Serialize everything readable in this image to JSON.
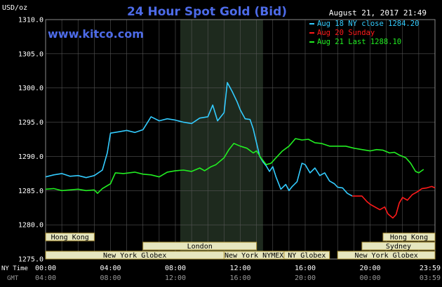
{
  "chart_data": {
    "type": "line",
    "title": "24 Hour Spot Gold (Bid)",
    "subtitle": "www.kitco.com",
    "timestamp": "August 21, 2017 21:49",
    "ylabel": "USD/oz",
    "ylim": [
      1275.0,
      1310.0
    ],
    "yticks": [
      "1275.0",
      "1280.0",
      "1285.0",
      "1290.0",
      "1295.0",
      "1300.0",
      "1305.0",
      "1310.0"
    ],
    "xlim": [
      0,
      24
    ],
    "x_label_ny": "NY Time",
    "x_label_gmt": "GMT",
    "xticks_ny": [
      "00:00",
      "04:00",
      "08:00",
      "12:00",
      "16:00",
      "20:00",
      "23:59"
    ],
    "xticks_gmt": [
      "04:00",
      "08:00",
      "12:00",
      "16:00",
      "20:00",
      "00:00",
      "03:59"
    ],
    "xtick_hours": [
      0,
      4,
      8,
      12,
      16,
      20,
      24
    ],
    "highlight_hours": [
      8.3,
      13.4
    ],
    "legend_placement": "top-right",
    "colors": {
      "background": "#000000",
      "grid": "#555555",
      "highlight": "#1e2a1e",
      "axis_text": "#ffffff",
      "title": "#4d6be8",
      "aug18": "#33ccff",
      "aug20": "#ff1a1a",
      "aug21": "#22ee22",
      "session_bar": "#e6e6bf",
      "session_border": "#b49a3c",
      "session_text": "#000000"
    },
    "series": [
      {
        "name": "Aug 18 NY close 1284.20",
        "color_key": "aug18",
        "points": [
          [
            0,
            1287.0
          ],
          [
            0.5,
            1287.3
          ],
          [
            1,
            1287.5
          ],
          [
            1.5,
            1287.1
          ],
          [
            2,
            1287.2
          ],
          [
            2.5,
            1286.9
          ],
          [
            3,
            1287.2
          ],
          [
            3.5,
            1288.0
          ],
          [
            3.8,
            1290.5
          ],
          [
            4,
            1293.4
          ],
          [
            4.5,
            1293.6
          ],
          [
            5,
            1293.8
          ],
          [
            5.5,
            1293.5
          ],
          [
            6,
            1293.9
          ],
          [
            6.5,
            1295.8
          ],
          [
            7,
            1295.2
          ],
          [
            7.5,
            1295.5
          ],
          [
            8,
            1295.3
          ],
          [
            8.5,
            1295.0
          ],
          [
            9,
            1294.8
          ],
          [
            9.5,
            1295.6
          ],
          [
            10,
            1295.8
          ],
          [
            10.3,
            1297.5
          ],
          [
            10.6,
            1295.2
          ],
          [
            11,
            1296.4
          ],
          [
            11.2,
            1300.8
          ],
          [
            11.5,
            1299.5
          ],
          [
            11.8,
            1298.0
          ],
          [
            12.0,
            1296.8
          ],
          [
            12.3,
            1295.5
          ],
          [
            12.6,
            1295.4
          ],
          [
            12.8,
            1294.0
          ],
          [
            13.0,
            1292.0
          ],
          [
            13.2,
            1290.0
          ],
          [
            13.4,
            1289.2
          ],
          [
            13.6,
            1288.6
          ],
          [
            13.8,
            1287.8
          ],
          [
            14.0,
            1288.5
          ],
          [
            14.2,
            1287.0
          ],
          [
            14.5,
            1285.2
          ],
          [
            14.8,
            1285.9
          ],
          [
            15.0,
            1285.0
          ],
          [
            15.2,
            1285.6
          ],
          [
            15.5,
            1286.3
          ],
          [
            15.8,
            1289.0
          ],
          [
            16.0,
            1288.8
          ],
          [
            16.3,
            1287.6
          ],
          [
            16.6,
            1288.3
          ],
          [
            16.9,
            1287.2
          ],
          [
            17.2,
            1287.6
          ],
          [
            17.5,
            1286.4
          ],
          [
            17.8,
            1286.0
          ],
          [
            18.0,
            1285.5
          ],
          [
            18.3,
            1285.4
          ],
          [
            18.6,
            1284.6
          ],
          [
            18.9,
            1284.2
          ]
        ]
      },
      {
        "name": "Aug 20 Sunday",
        "color_key": "aug20",
        "points": [
          [
            18.9,
            1284.2
          ],
          [
            19.5,
            1284.2
          ],
          [
            19.8,
            1283.4
          ],
          [
            20.0,
            1283.0
          ],
          [
            20.3,
            1282.6
          ],
          [
            20.6,
            1282.2
          ],
          [
            20.9,
            1282.6
          ],
          [
            21.1,
            1281.6
          ],
          [
            21.4,
            1281.0
          ],
          [
            21.6,
            1281.5
          ],
          [
            21.8,
            1283.2
          ],
          [
            22.0,
            1284.0
          ],
          [
            22.3,
            1283.6
          ],
          [
            22.6,
            1284.4
          ],
          [
            22.9,
            1284.8
          ],
          [
            23.2,
            1285.3
          ],
          [
            23.5,
            1285.4
          ],
          [
            23.8,
            1285.6
          ],
          [
            24.0,
            1285.4
          ]
        ]
      },
      {
        "name": "Aug 21 Last 1288.10",
        "color_key": "aug21",
        "points": [
          [
            0,
            1285.2
          ],
          [
            0.5,
            1285.3
          ],
          [
            1,
            1285.0
          ],
          [
            1.5,
            1285.1
          ],
          [
            2,
            1285.2
          ],
          [
            2.5,
            1285.0
          ],
          [
            3,
            1285.1
          ],
          [
            3.2,
            1284.6
          ],
          [
            3.5,
            1285.3
          ],
          [
            4,
            1286.0
          ],
          [
            4.3,
            1287.6
          ],
          [
            4.8,
            1287.5
          ],
          [
            5.5,
            1287.7
          ],
          [
            6,
            1287.4
          ],
          [
            6.5,
            1287.3
          ],
          [
            7,
            1287.0
          ],
          [
            7.5,
            1287.7
          ],
          [
            8,
            1287.9
          ],
          [
            8.5,
            1288.0
          ],
          [
            9,
            1287.8
          ],
          [
            9.5,
            1288.3
          ],
          [
            9.8,
            1287.9
          ],
          [
            10.2,
            1288.5
          ],
          [
            10.5,
            1288.8
          ],
          [
            11,
            1289.8
          ],
          [
            11.3,
            1291.0
          ],
          [
            11.6,
            1291.9
          ],
          [
            12.0,
            1291.5
          ],
          [
            12.4,
            1291.2
          ],
          [
            12.8,
            1290.5
          ],
          [
            13.0,
            1290.8
          ],
          [
            13.3,
            1289.7
          ],
          [
            13.6,
            1288.8
          ],
          [
            13.9,
            1289.0
          ],
          [
            14.2,
            1289.8
          ],
          [
            14.6,
            1290.8
          ],
          [
            15.0,
            1291.5
          ],
          [
            15.4,
            1292.6
          ],
          [
            15.8,
            1292.4
          ],
          [
            16.2,
            1292.5
          ],
          [
            16.6,
            1292.0
          ],
          [
            17.0,
            1291.9
          ],
          [
            17.5,
            1291.5
          ],
          [
            18.0,
            1291.5
          ],
          [
            18.5,
            1291.5
          ],
          [
            19.0,
            1291.2
          ],
          [
            19.5,
            1291.0
          ],
          [
            20.0,
            1290.8
          ],
          [
            20.4,
            1291.0
          ],
          [
            20.8,
            1290.9
          ],
          [
            21.2,
            1290.5
          ],
          [
            21.5,
            1290.6
          ],
          [
            21.8,
            1290.2
          ],
          [
            22.2,
            1289.8
          ],
          [
            22.5,
            1289.0
          ],
          [
            22.8,
            1287.8
          ],
          [
            23.0,
            1287.6
          ],
          [
            23.3,
            1288.1
          ]
        ]
      }
    ],
    "sessions": [
      {
        "label": "Hong Kong",
        "start": 0,
        "end": 3.0,
        "row": 1
      },
      {
        "label": "London",
        "start": 6.0,
        "end": 13.0,
        "row": 2
      },
      {
        "label": "New York Globex",
        "start": 0,
        "end": 11.0,
        "row": 3
      },
      {
        "label": "New York NYMEX",
        "start": 11.0,
        "end": 14.7,
        "row": 3
      },
      {
        "label": "NY Globex",
        "start": 14.7,
        "end": 17.5,
        "row": 3
      },
      {
        "label": "Hong Kong",
        "start": 20.8,
        "end": 24.0,
        "row": 1
      },
      {
        "label": "Sydney",
        "start": 19.5,
        "end": 24.0,
        "row": 2
      },
      {
        "label": "New York Globex",
        "start": 18.0,
        "end": 24.0,
        "row": 3
      }
    ]
  }
}
